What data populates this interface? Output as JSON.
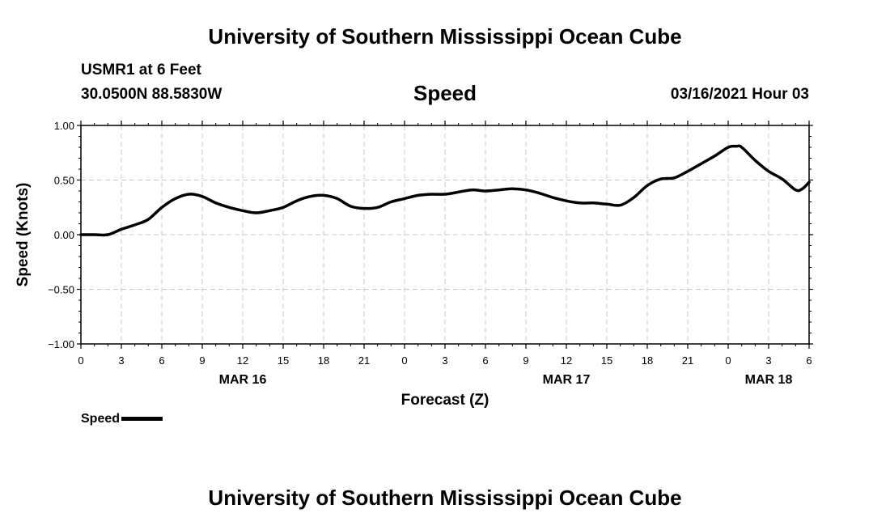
{
  "header": {
    "title": "University of Southern Mississippi Ocean Cube",
    "station": "USMR1 at 6 Feet",
    "coords": "30.0500N 88.5830W",
    "variable": "Speed",
    "datetime": "03/16/2021 Hour 03"
  },
  "footer": {
    "title": "University of Southern Mississippi Ocean Cube"
  },
  "legend": {
    "label": "Speed",
    "color": "#000000"
  },
  "chart_data": {
    "type": "line",
    "title": "Speed",
    "xlabel": "Forecast (Z)",
    "ylabel": "Speed (Knots)",
    "xlim": [
      0,
      54
    ],
    "ylim": [
      -1.0,
      1.0
    ],
    "grid": true,
    "legend_position": "bottom-left",
    "y_ticks": [
      1.0,
      0.5,
      0.0,
      -0.5,
      -1.0
    ],
    "y_tick_labels": [
      "1.00",
      "0.50",
      "0.00",
      "−0.50",
      "−1.00"
    ],
    "x_ticks": [
      0,
      3,
      6,
      9,
      12,
      15,
      18,
      21,
      24,
      27,
      30,
      33,
      36,
      39,
      42,
      45,
      48,
      51,
      54
    ],
    "x_tick_labels": [
      "0",
      "3",
      "6",
      "9",
      "12",
      "15",
      "18",
      "21",
      "0",
      "3",
      "6",
      "9",
      "12",
      "15",
      "18",
      "21",
      "0",
      "3",
      "6"
    ],
    "date_labels": [
      {
        "x": 12,
        "label": "MAR 16"
      },
      {
        "x": 36,
        "label": "MAR 17"
      },
      {
        "x": 51,
        "label": "MAR 18"
      }
    ],
    "series": [
      {
        "name": "Speed",
        "x": [
          0,
          1,
          2,
          3,
          4,
          5,
          6,
          7,
          8,
          9,
          10,
          11,
          12,
          13,
          14,
          15,
          16,
          17,
          18,
          19,
          20,
          21,
          22,
          23,
          24,
          25,
          26,
          27,
          28,
          29,
          30,
          31,
          32,
          33,
          34,
          35,
          36,
          37,
          38,
          39,
          40,
          41,
          42,
          43,
          44,
          45,
          46,
          47,
          48,
          48.6,
          49,
          50,
          51,
          52,
          53,
          53.5,
          54
        ],
        "values": [
          0.0,
          0.0,
          0.0,
          0.05,
          0.09,
          0.14,
          0.25,
          0.33,
          0.37,
          0.35,
          0.29,
          0.25,
          0.22,
          0.2,
          0.22,
          0.25,
          0.31,
          0.35,
          0.36,
          0.33,
          0.26,
          0.24,
          0.25,
          0.3,
          0.33,
          0.36,
          0.37,
          0.37,
          0.39,
          0.41,
          0.4,
          0.41,
          0.42,
          0.41,
          0.38,
          0.34,
          0.31,
          0.29,
          0.29,
          0.28,
          0.27,
          0.34,
          0.45,
          0.51,
          0.52,
          0.58,
          0.65,
          0.72,
          0.8,
          0.81,
          0.8,
          0.68,
          0.58,
          0.51,
          0.41,
          0.42,
          0.48
        ]
      }
    ]
  }
}
